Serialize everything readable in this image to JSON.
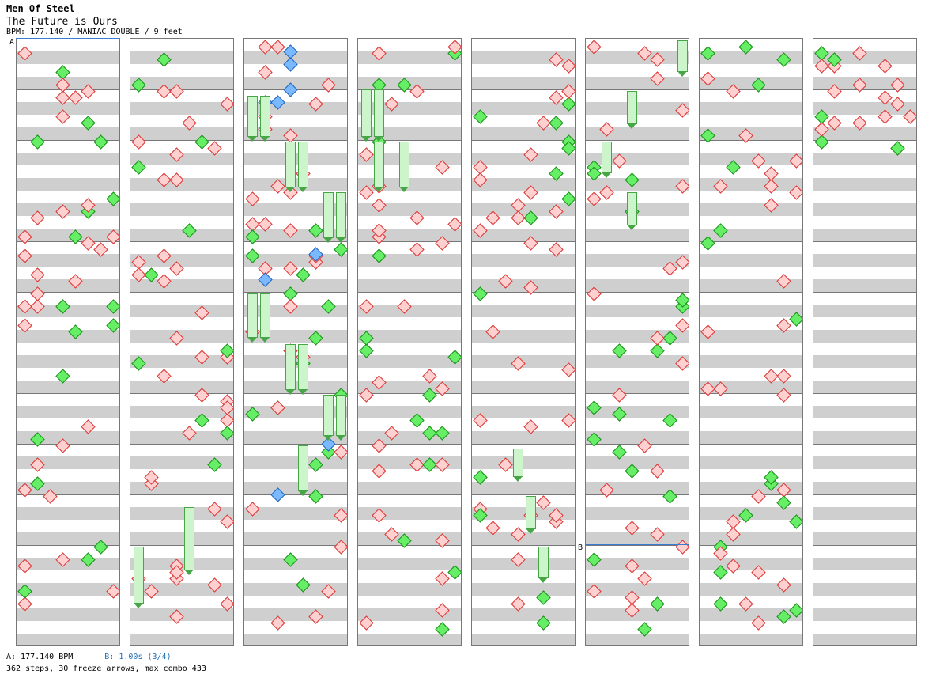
{
  "song": {
    "artist": "Men Of Steel",
    "title": "The Future is Ours",
    "info": "BPM: 177.140 / MANIAC DOUBLE / 9 feet"
  },
  "markers": {
    "a": "A",
    "b": "B"
  },
  "legend": {
    "a": "A: 177.140 BPM",
    "b": "B: 1.00s (3/4)"
  },
  "stats": "362 steps, 30 freeze arrows, max combo 433",
  "colors": {
    "red_note": "#ffd0d0",
    "green_note": "#66ee66",
    "blue_note": "#7ab8ff",
    "freeze": "#ccf5cc",
    "band": "#cfcfcf"
  },
  "chart_data": {
    "type": "step_chart",
    "columns": 8,
    "measures_per_column": 12,
    "lanes": 8,
    "bpm": 177.14,
    "difficulty": "MANIAC DOUBLE",
    "feet": 9,
    "steps": 362,
    "freeze_arrows": 30,
    "max_combo": 433,
    "stops": [
      "1.00s (3/4)"
    ],
    "arrow_colors": [
      "red",
      "green",
      "blue"
    ]
  }
}
